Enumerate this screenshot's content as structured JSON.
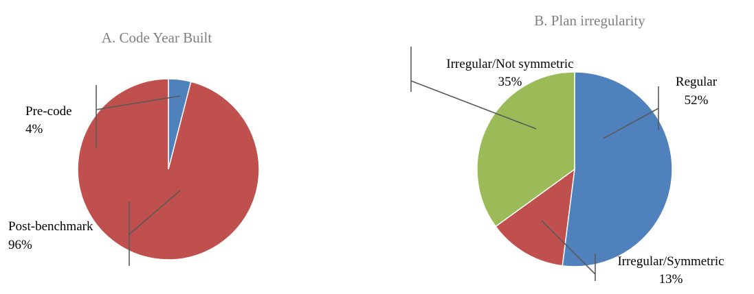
{
  "chart_data": [
    {
      "type": "pie",
      "title": "A. Code Year Built",
      "slices": [
        {
          "label": "Pre-code",
          "value": 4,
          "value_text": "4%",
          "color": "#4f81bd"
        },
        {
          "label": "Post-benchmark",
          "value": 96,
          "value_text": "96%",
          "color": "#c0504d"
        }
      ]
    },
    {
      "type": "pie",
      "title": "B. Plan irregularity",
      "slices": [
        {
          "label": "Regular",
          "value": 52,
          "value_text": "52%",
          "color": "#4f81bd"
        },
        {
          "label": "Irregular/Symmetric",
          "value": 13,
          "value_text": "13%",
          "color": "#c0504d"
        },
        {
          "label": "Irregular/Not symmetric",
          "value": 35,
          "value_text": "35%",
          "color": "#9bbb59"
        }
      ]
    }
  ]
}
